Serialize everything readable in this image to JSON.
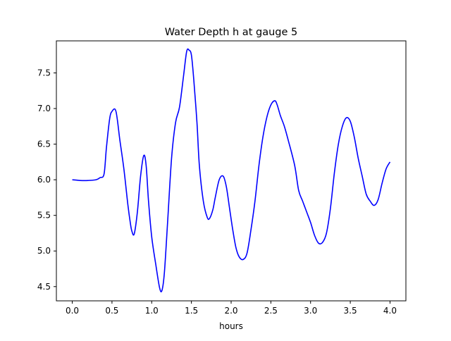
{
  "chart_data": {
    "type": "line",
    "title": "Water Depth h at gauge 5",
    "xlabel": "hours",
    "ylabel": "",
    "xlim": [
      -0.2,
      4.2
    ],
    "ylim": [
      4.3,
      7.95
    ],
    "xticks": [
      0.0,
      0.5,
      1.0,
      1.5,
      2.0,
      2.5,
      3.0,
      3.5,
      4.0
    ],
    "xtick_labels": [
      "0.0",
      "0.5",
      "1.0",
      "1.5",
      "2.0",
      "2.5",
      "3.0",
      "3.5",
      "4.0"
    ],
    "yticks": [
      4.5,
      5.0,
      5.5,
      6.0,
      6.5,
      7.0,
      7.5
    ],
    "ytick_labels": [
      "4.5",
      "5.0",
      "5.5",
      "6.0",
      "6.5",
      "7.0",
      "7.5"
    ],
    "grid": false,
    "legend": "none",
    "series": [
      {
        "color": "#0000ff",
        "x": [
          0.0,
          0.1,
          0.2,
          0.3,
          0.35,
          0.4,
          0.43,
          0.47,
          0.5,
          0.55,
          0.6,
          0.65,
          0.7,
          0.73,
          0.75,
          0.78,
          0.82,
          0.86,
          0.9,
          0.93,
          0.96,
          1.0,
          1.05,
          1.1,
          1.13,
          1.16,
          1.2,
          1.25,
          1.3,
          1.35,
          1.4,
          1.44,
          1.47,
          1.5,
          1.53,
          1.57,
          1.6,
          1.65,
          1.7,
          1.73,
          1.77,
          1.8,
          1.85,
          1.9,
          1.94,
          1.98,
          2.02,
          2.06,
          2.1,
          2.15,
          2.2,
          2.25,
          2.3,
          2.35,
          2.4,
          2.45,
          2.5,
          2.55,
          2.58,
          2.62,
          2.67,
          2.72,
          2.8,
          2.85,
          2.9,
          2.95,
          3.0,
          3.05,
          3.1,
          3.15,
          3.2,
          3.25,
          3.3,
          3.35,
          3.4,
          3.45,
          3.5,
          3.55,
          3.6,
          3.65,
          3.7,
          3.75,
          3.8,
          3.85,
          3.9,
          3.95,
          4.0
        ],
        "y": [
          6.0,
          5.99,
          5.99,
          6.0,
          6.03,
          6.08,
          6.45,
          6.85,
          6.96,
          6.96,
          6.55,
          6.15,
          5.65,
          5.4,
          5.28,
          5.24,
          5.55,
          6.05,
          6.34,
          6.2,
          5.7,
          5.2,
          4.82,
          4.48,
          4.45,
          4.7,
          5.4,
          6.3,
          6.8,
          7.02,
          7.45,
          7.8,
          7.82,
          7.75,
          7.4,
          6.8,
          6.2,
          5.7,
          5.47,
          5.46,
          5.58,
          5.75,
          6.0,
          6.05,
          5.9,
          5.6,
          5.3,
          5.05,
          4.92,
          4.88,
          4.97,
          5.3,
          5.7,
          6.2,
          6.6,
          6.88,
          7.05,
          7.11,
          7.05,
          6.9,
          6.75,
          6.55,
          6.2,
          5.85,
          5.7,
          5.55,
          5.4,
          5.22,
          5.11,
          5.12,
          5.25,
          5.6,
          6.1,
          6.5,
          6.75,
          6.87,
          6.82,
          6.6,
          6.3,
          6.05,
          5.8,
          5.7,
          5.64,
          5.72,
          5.95,
          6.15,
          6.25
        ]
      }
    ]
  }
}
